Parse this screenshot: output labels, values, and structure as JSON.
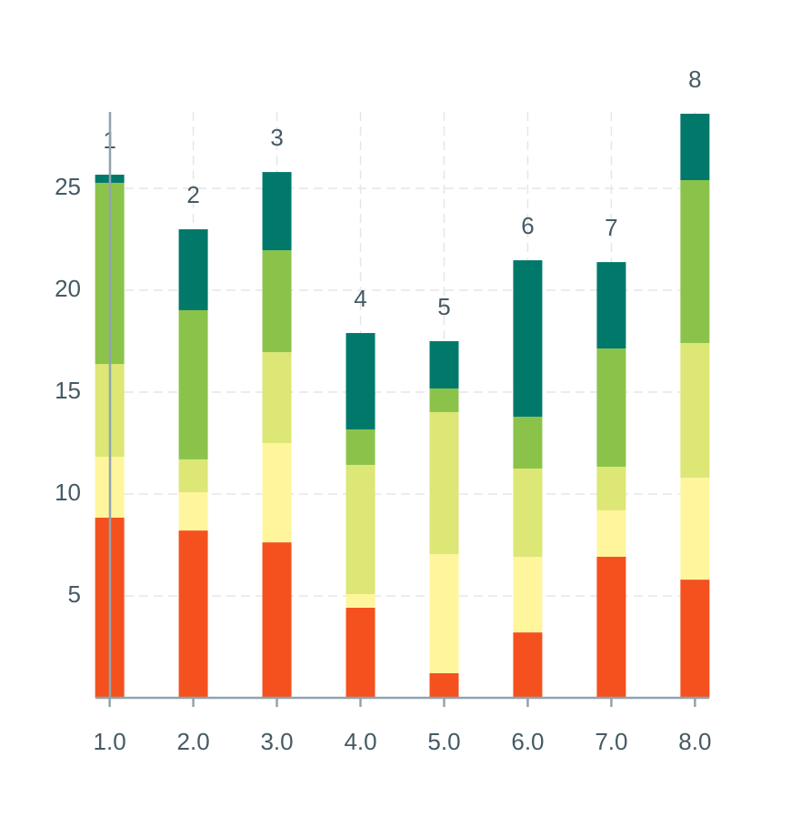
{
  "chart_data": {
    "type": "stacked_bar",
    "x": [
      1,
      2,
      3,
      4,
      5,
      6,
      7,
      8
    ],
    "bar_labels": [
      "1",
      "2",
      "3",
      "4",
      "5",
      "6",
      "7",
      "8"
    ],
    "series": [
      {
        "color": "#f4511e",
        "values": [
          8.84,
          8.21,
          7.63,
          4.42,
          1.21,
          3.21,
          6.92,
          5.8
        ]
      },
      {
        "color": "#fff59d",
        "values": [
          2.99,
          1.88,
          4.87,
          0.67,
          5.84,
          3.71,
          2.28,
          5.0
        ]
      },
      {
        "color": "#dce775",
        "values": [
          4.55,
          1.61,
          4.46,
          6.34,
          6.97,
          4.33,
          2.14,
          6.61
        ]
      },
      {
        "color": "#8bc34a",
        "values": [
          8.89,
          7.32,
          5.0,
          1.74,
          1.16,
          2.54,
          5.8,
          7.99
        ]
      },
      {
        "color": "#00796b",
        "values": [
          0.4,
          3.97,
          3.84,
          4.73,
          2.32,
          7.68,
          4.24,
          3.26
        ]
      }
    ],
    "xlim": [
      0.83,
      8.17
    ],
    "ylim": [
      0,
      28.75
    ],
    "xticks": [
      {
        "value": 1,
        "label": "1.0"
      },
      {
        "value": 2,
        "label": "2.0"
      },
      {
        "value": 3,
        "label": "3.0"
      },
      {
        "value": 4,
        "label": "4.0"
      },
      {
        "value": 5,
        "label": "5.0"
      },
      {
        "value": 6,
        "label": "6.0"
      },
      {
        "value": 7,
        "label": "7.0"
      },
      {
        "value": 8,
        "label": "8.0"
      }
    ],
    "yticks": [
      5,
      10,
      15,
      20,
      25
    ],
    "grid": true
  }
}
